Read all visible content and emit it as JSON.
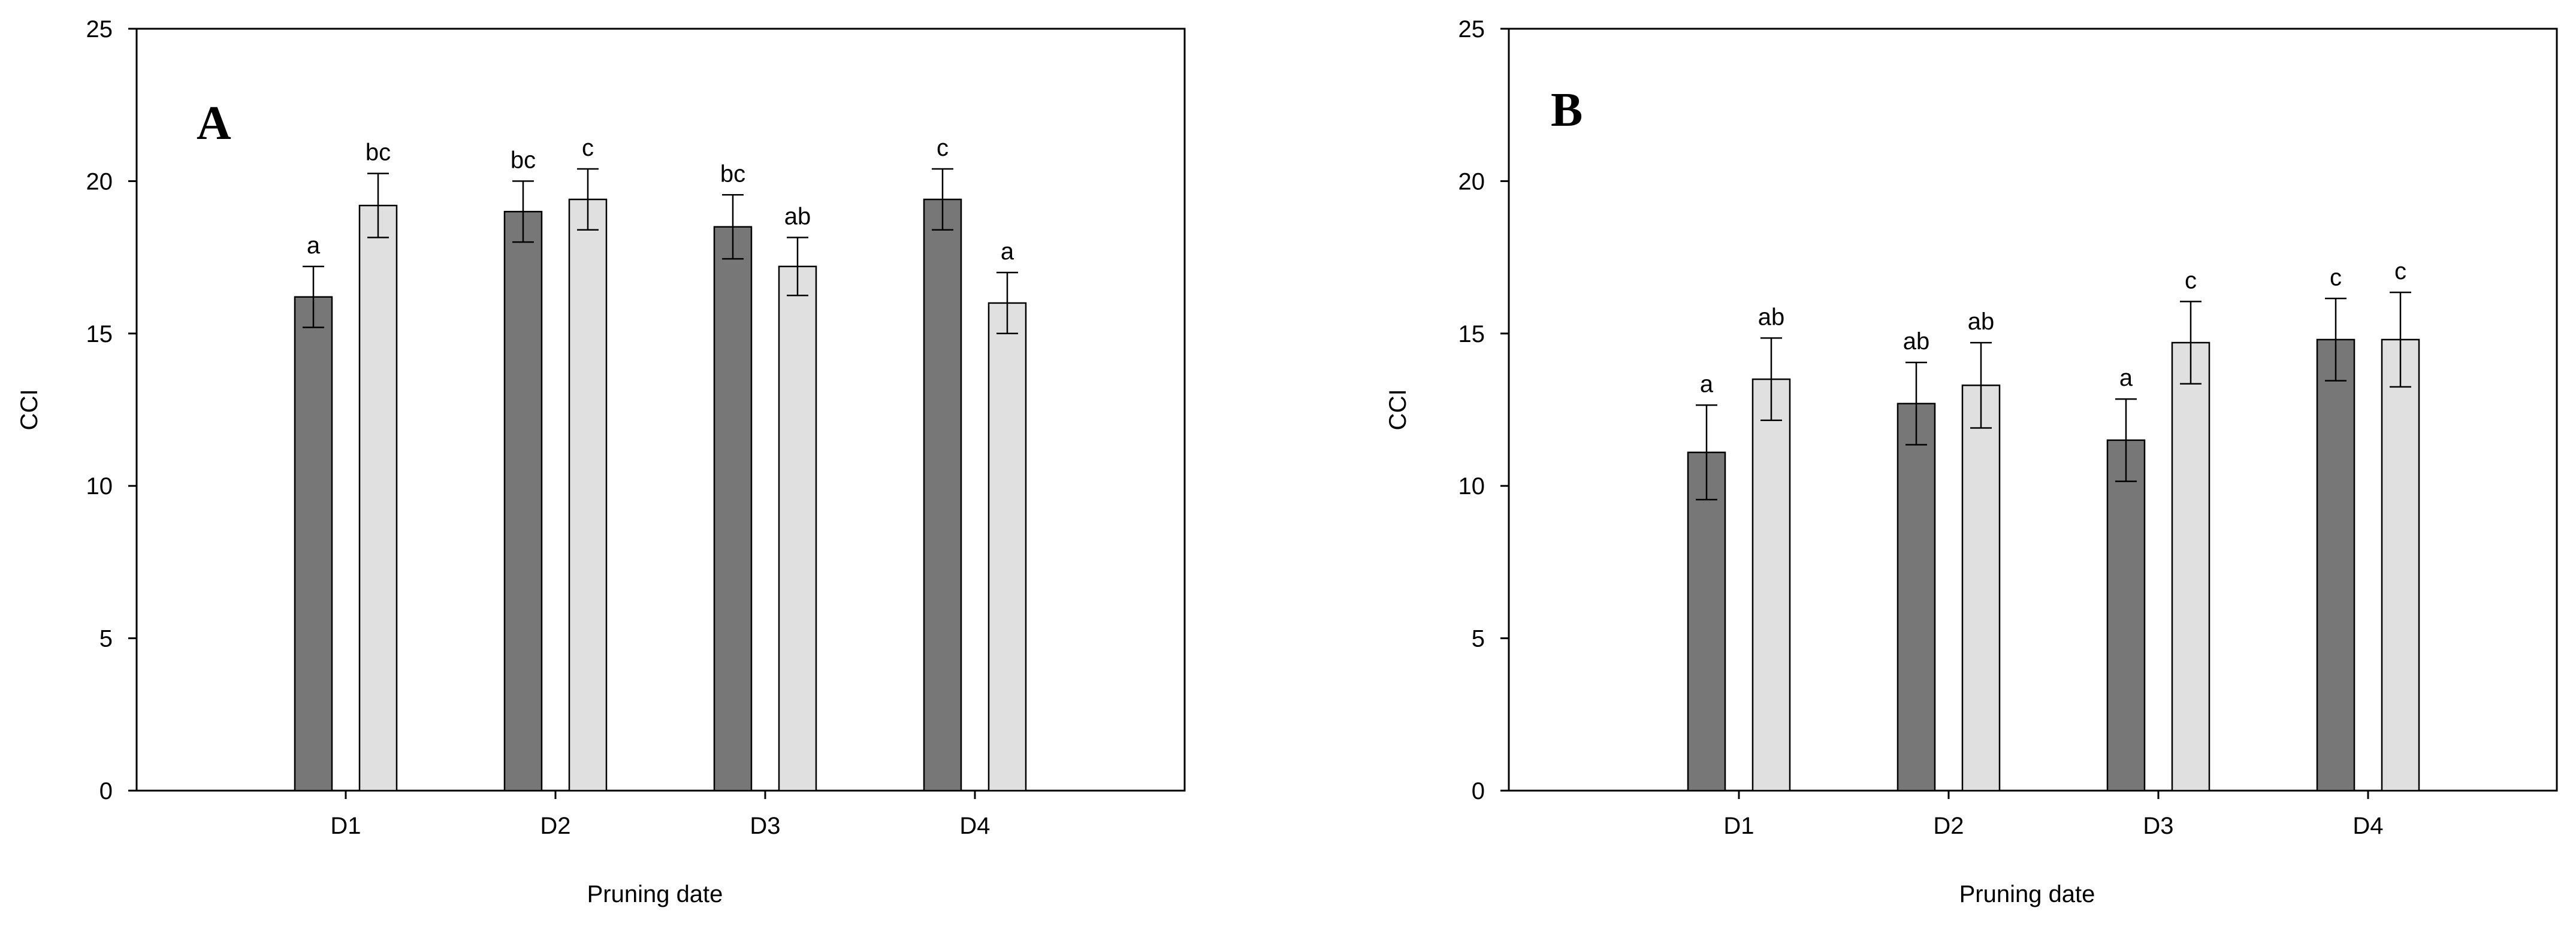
{
  "chart_data": [
    {
      "type": "bar",
      "panel_label": "A",
      "categories": [
        "D1",
        "D2",
        "D3",
        "D4"
      ],
      "series": [
        {
          "color": "#777777",
          "values": [
            16.2,
            19.0,
            18.5,
            19.4
          ],
          "errors": [
            1.0,
            1.0,
            1.05,
            1.0
          ],
          "letters": [
            "a",
            "bc",
            "bc",
            "c"
          ]
        },
        {
          "color": "#e0e0e0",
          "values": [
            19.2,
            19.4,
            17.2,
            16.0
          ],
          "errors": [
            1.05,
            1.0,
            0.95,
            1.0
          ],
          "letters": [
            "bc",
            "c",
            "ab",
            "a"
          ]
        }
      ],
      "xlabel": "Pruning date",
      "ylabel": "CCI",
      "ylim": [
        0,
        25
      ],
      "yticks": [
        "0",
        "5",
        "10",
        "15",
        "20",
        "25"
      ],
      "grid": false
    },
    {
      "type": "bar",
      "panel_label": "B",
      "categories": [
        "D1",
        "D2",
        "D3",
        "D4"
      ],
      "series": [
        {
          "color": "#777777",
          "values": [
            11.1,
            12.7,
            11.5,
            14.8
          ],
          "errors": [
            1.55,
            1.35,
            1.35,
            1.35
          ],
          "letters": [
            "a",
            "ab",
            "a",
            "c"
          ]
        },
        {
          "color": "#e0e0e0",
          "values": [
            13.5,
            13.3,
            14.7,
            14.8
          ],
          "errors": [
            1.35,
            1.4,
            1.35,
            1.55
          ],
          "letters": [
            "ab",
            "ab",
            "c",
            "c"
          ]
        }
      ],
      "xlabel": "Pruning date",
      "ylabel": "CCI",
      "ylim": [
        0,
        25
      ],
      "yticks": [
        "0",
        "5",
        "10",
        "15",
        "20",
        "25"
      ],
      "grid": false
    }
  ]
}
